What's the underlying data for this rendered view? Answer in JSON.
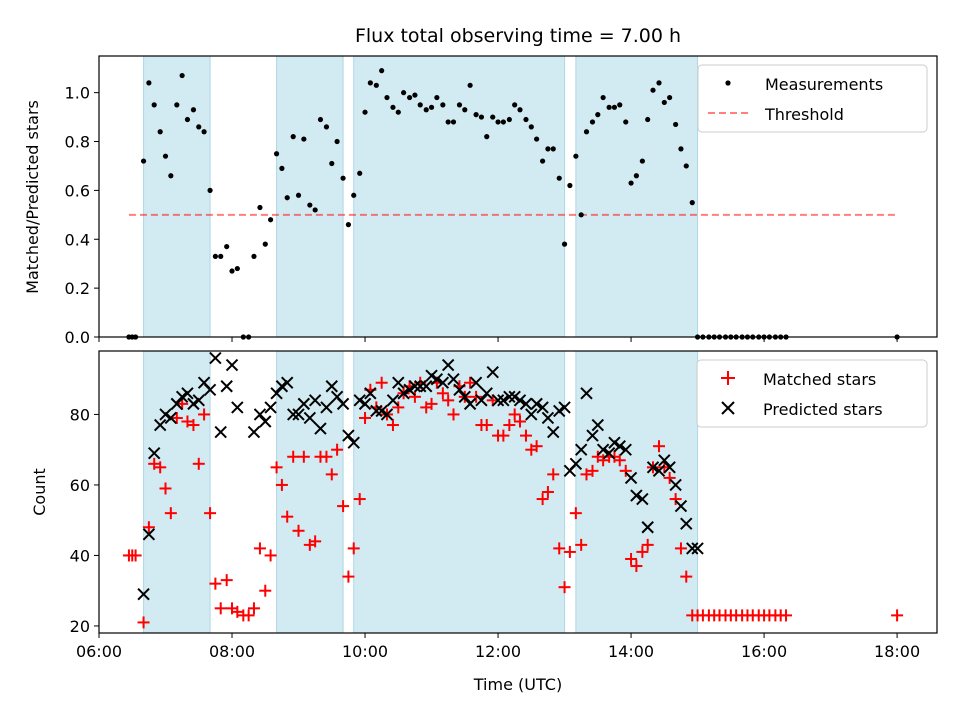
{
  "colors": {
    "band": "#add8e6",
    "measurements": "#000000",
    "threshold": "#ff0000",
    "matched": "#ff0000",
    "predicted": "#000000"
  },
  "chart_data": [
    {
      "type": "scatter",
      "title": "Flux total observing time = 7.00 h",
      "xlabel": "",
      "ylabel": "Matched/Predicted stars",
      "xlim": [
        6.0,
        18.6
      ],
      "ylim": [
        0.0,
        1.15
      ],
      "xticks": [
        6,
        8,
        10,
        12,
        14,
        16,
        18
      ],
      "xtick_labels": [
        "",
        "",
        "",
        "",
        "",
        "",
        ""
      ],
      "yticks": [
        0.0,
        0.2,
        0.4,
        0.6,
        0.8,
        1.0
      ],
      "ytick_labels": [
        "0.0",
        "0.2",
        "0.4",
        "0.6",
        "0.8",
        "1.0"
      ],
      "grid": false,
      "legend_position": "top-right",
      "observing_bands": [
        [
          6.67,
          7.67
        ],
        [
          8.67,
          9.67
        ],
        [
          9.83,
          13.0
        ],
        [
          13.17,
          15.0
        ]
      ],
      "series": [
        {
          "name": "Measurements",
          "kind": "points",
          "x": [
            6.45,
            6.5,
            6.55,
            6.67,
            6.75,
            6.83,
            6.92,
            7.0,
            7.08,
            7.17,
            7.25,
            7.33,
            7.42,
            7.5,
            7.58,
            7.67,
            7.75,
            7.83,
            7.92,
            8.0,
            8.08,
            8.17,
            8.25,
            8.33,
            8.42,
            8.5,
            8.58,
            8.67,
            8.75,
            8.83,
            8.92,
            9.0,
            9.08,
            9.17,
            9.25,
            9.33,
            9.42,
            9.5,
            9.58,
            9.67,
            9.75,
            9.83,
            9.92,
            10.0,
            10.08,
            10.17,
            10.25,
            10.33,
            10.42,
            10.5,
            10.58,
            10.67,
            10.75,
            10.83,
            10.92,
            11.0,
            11.08,
            11.17,
            11.25,
            11.33,
            11.42,
            11.5,
            11.58,
            11.67,
            11.75,
            11.83,
            11.92,
            12.0,
            12.08,
            12.17,
            12.25,
            12.33,
            12.42,
            12.5,
            12.58,
            12.67,
            12.75,
            12.83,
            12.92,
            13.0,
            13.08,
            13.17,
            13.25,
            13.33,
            13.42,
            13.5,
            13.58,
            13.67,
            13.75,
            13.83,
            13.92,
            14.0,
            14.08,
            14.17,
            14.25,
            14.33,
            14.42,
            14.5,
            14.58,
            14.67,
            14.75,
            14.83,
            14.92,
            15.0,
            15.08,
            15.17,
            15.25,
            15.33,
            15.42,
            15.5,
            15.58,
            15.67,
            15.75,
            15.83,
            15.92,
            16.0,
            16.08,
            16.17,
            16.25,
            16.33,
            18.0
          ],
          "y": [
            0.0,
            0.0,
            0.0,
            0.72,
            1.04,
            0.95,
            0.84,
            0.74,
            0.66,
            0.95,
            1.07,
            0.89,
            0.93,
            0.86,
            0.84,
            0.6,
            0.33,
            0.33,
            0.37,
            0.27,
            0.28,
            0.0,
            0.0,
            0.33,
            0.53,
            0.38,
            0.48,
            0.75,
            0.69,
            0.57,
            0.82,
            0.58,
            0.81,
            0.54,
            0.52,
            0.89,
            0.86,
            0.71,
            0.8,
            0.65,
            0.46,
            0.58,
            0.67,
            0.92,
            1.04,
            1.03,
            1.09,
            0.98,
            0.94,
            0.92,
            1.0,
            0.98,
            0.99,
            0.95,
            0.93,
            0.94,
            0.98,
            0.95,
            0.88,
            0.88,
            0.95,
            0.93,
            1.03,
            0.91,
            0.9,
            0.82,
            0.9,
            0.88,
            0.88,
            0.89,
            0.95,
            0.93,
            0.89,
            0.86,
            0.81,
            0.72,
            0.77,
            0.77,
            0.65,
            0.38,
            0.62,
            0.74,
            0.5,
            0.84,
            0.88,
            0.91,
            0.98,
            0.94,
            0.94,
            0.95,
            0.88,
            0.63,
            0.66,
            0.72,
            0.89,
            1.01,
            1.04,
            0.96,
            0.98,
            0.87,
            0.77,
            0.7,
            0.55,
            0.0,
            0.0,
            0.0,
            0.0,
            0.0,
            0.0,
            0.0,
            0.0,
            0.0,
            0.0,
            0.0,
            0.0,
            0.0,
            0.0,
            0.0,
            0.0,
            0.0,
            0.0
          ]
        },
        {
          "name": "Threshold",
          "kind": "dashed-line",
          "x": [
            6.45,
            18.0
          ],
          "y": [
            0.5,
            0.5
          ]
        }
      ]
    },
    {
      "type": "scatter",
      "title": "",
      "xlabel": "Time (UTC)",
      "ylabel": "Count",
      "xlim": [
        6.0,
        18.6
      ],
      "ylim": [
        18,
        98
      ],
      "xticks": [
        6,
        8,
        10,
        12,
        14,
        16,
        18
      ],
      "xtick_labels": [
        "06:00",
        "08:00",
        "10:00",
        "12:00",
        "14:00",
        "16:00",
        "18:00"
      ],
      "yticks": [
        20,
        40,
        60,
        80
      ],
      "ytick_labels": [
        "20",
        "40",
        "60",
        "80"
      ],
      "grid": false,
      "legend_position": "top-right",
      "observing_bands": [
        [
          6.67,
          7.67
        ],
        [
          8.67,
          9.67
        ],
        [
          9.83,
          13.0
        ],
        [
          13.17,
          15.0
        ]
      ],
      "series": [
        {
          "name": "Matched stars",
          "kind": "plus",
          "x": [
            6.45,
            6.5,
            6.55,
            6.67,
            6.75,
            6.83,
            6.92,
            7.0,
            7.08,
            7.17,
            7.25,
            7.33,
            7.42,
            7.5,
            7.58,
            7.67,
            7.75,
            7.83,
            7.92,
            8.0,
            8.08,
            8.17,
            8.25,
            8.33,
            8.42,
            8.5,
            8.58,
            8.67,
            8.75,
            8.83,
            8.92,
            9.0,
            9.08,
            9.17,
            9.25,
            9.33,
            9.42,
            9.5,
            9.58,
            9.67,
            9.75,
            9.83,
            9.92,
            10.0,
            10.08,
            10.17,
            10.25,
            10.33,
            10.42,
            10.5,
            10.58,
            10.67,
            10.75,
            10.83,
            10.92,
            11.0,
            11.08,
            11.17,
            11.25,
            11.33,
            11.42,
            11.5,
            11.58,
            11.67,
            11.75,
            11.83,
            11.92,
            12.0,
            12.08,
            12.17,
            12.25,
            12.33,
            12.42,
            12.5,
            12.58,
            12.67,
            12.75,
            12.83,
            12.92,
            13.0,
            13.08,
            13.17,
            13.25,
            13.33,
            13.42,
            13.5,
            13.58,
            13.67,
            13.75,
            13.83,
            13.92,
            14.0,
            14.08,
            14.17,
            14.25,
            14.33,
            14.42,
            14.5,
            14.58,
            14.67,
            14.75,
            14.83,
            14.92,
            15.0,
            15.08,
            15.17,
            15.25,
            15.33,
            15.42,
            15.5,
            15.58,
            15.67,
            15.75,
            15.83,
            15.92,
            16.0,
            16.08,
            16.17,
            16.25,
            16.33,
            18.0
          ],
          "y": [
            40,
            40,
            40,
            21,
            48,
            66,
            65,
            59,
            52,
            79,
            83,
            78,
            77,
            66,
            80,
            52,
            32,
            25,
            33,
            25,
            24,
            23,
            23,
            25,
            42,
            30,
            40,
            65,
            60,
            51,
            68,
            47,
            68,
            43,
            44,
            68,
            68,
            63,
            70,
            54,
            34,
            42,
            56,
            79,
            87,
            82,
            89,
            80,
            77,
            82,
            86,
            88,
            85,
            89,
            82,
            83,
            89,
            86,
            84,
            80,
            88,
            85,
            89,
            85,
            77,
            77,
            84,
            74,
            74,
            77,
            80,
            78,
            74,
            70,
            71,
            56,
            58,
            63,
            42,
            31,
            41,
            52,
            43,
            63,
            64,
            68,
            67,
            68,
            68,
            67,
            64,
            39,
            37,
            41,
            43,
            65,
            71,
            65,
            62,
            56,
            42,
            34,
            23,
            23,
            23,
            23,
            23,
            23,
            23,
            23,
            23,
            23,
            23,
            23,
            23,
            23,
            23,
            23,
            23,
            23,
            23
          ]
        },
        {
          "name": "Predicted stars",
          "kind": "cross",
          "x": [
            6.67,
            6.75,
            6.83,
            6.92,
            7.0,
            7.08,
            7.17,
            7.25,
            7.33,
            7.42,
            7.5,
            7.58,
            7.67,
            7.75,
            7.83,
            7.92,
            8.0,
            8.08,
            8.33,
            8.42,
            8.5,
            8.58,
            8.67,
            8.75,
            8.83,
            8.92,
            9.0,
            9.08,
            9.17,
            9.25,
            9.33,
            9.42,
            9.5,
            9.58,
            9.67,
            9.75,
            9.83,
            9.92,
            10.0,
            10.08,
            10.17,
            10.25,
            10.33,
            10.42,
            10.5,
            10.58,
            10.67,
            10.75,
            10.83,
            10.92,
            11.0,
            11.08,
            11.17,
            11.25,
            11.33,
            11.42,
            11.5,
            11.58,
            11.67,
            11.75,
            11.83,
            11.92,
            12.0,
            12.08,
            12.17,
            12.25,
            12.33,
            12.42,
            12.5,
            12.58,
            12.67,
            12.75,
            12.83,
            12.92,
            13.0,
            13.08,
            13.17,
            13.25,
            13.33,
            13.42,
            13.5,
            13.58,
            13.67,
            13.75,
            13.83,
            13.92,
            14.0,
            14.08,
            14.17,
            14.25,
            14.33,
            14.42,
            14.5,
            14.58,
            14.67,
            14.75,
            14.83,
            14.92,
            15.0
          ],
          "y": [
            29,
            46,
            69,
            77,
            80,
            79,
            83,
            85,
            86,
            83,
            84,
            89,
            87,
            96,
            75,
            88,
            94,
            82,
            75,
            80,
            78,
            82,
            86,
            88,
            89,
            80,
            80,
            83,
            79,
            84,
            76,
            82,
            88,
            85,
            83,
            74,
            72,
            84,
            83,
            86,
            81,
            81,
            80,
            84,
            89,
            86,
            87,
            88,
            88,
            88,
            91,
            90,
            89,
            94,
            90,
            87,
            85,
            83,
            89,
            84,
            86,
            92,
            84,
            84,
            85,
            85,
            84,
            83,
            80,
            83,
            82,
            79,
            75,
            81,
            82,
            64,
            66,
            70,
            86,
            74,
            77,
            70,
            69,
            72,
            71,
            70,
            62,
            57,
            56,
            48,
            65,
            64,
            67,
            65,
            60,
            54,
            49,
            42,
            42
          ]
        }
      ]
    }
  ]
}
